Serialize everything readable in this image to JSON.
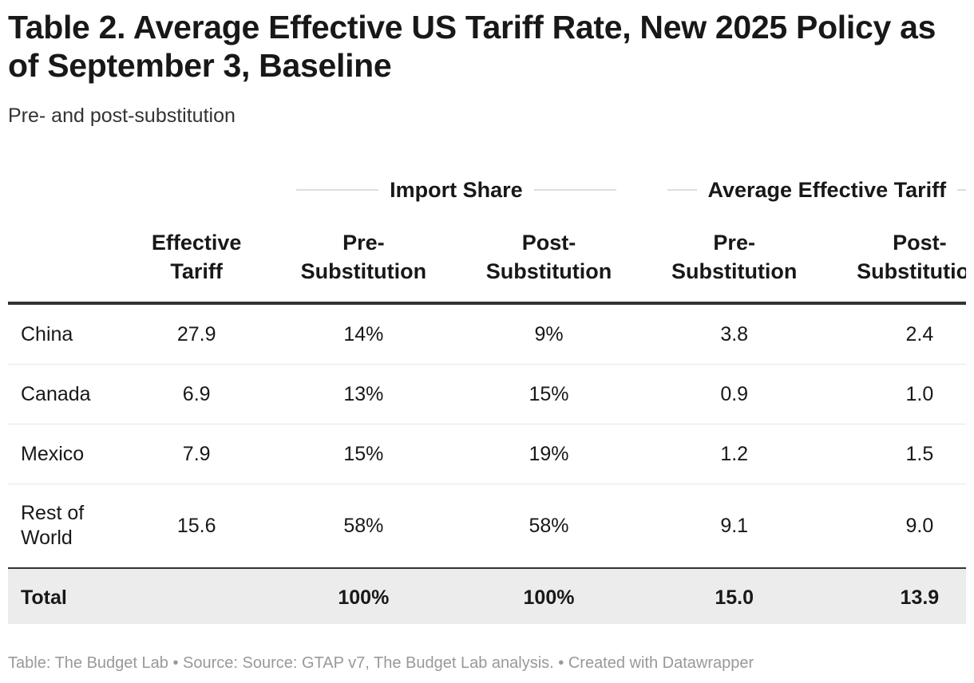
{
  "title": "Table 2. Average Effective US Tariff Rate, New 2025 Policy as of September 3, Baseline",
  "subtitle": "Pre- and post-substitution",
  "footer": "Table: The Budget Lab • Source: Source: GTAP v7, The Budget Lab analysis. • Created with Datawrapper",
  "chart_data": {
    "type": "table",
    "column_groups": [
      {
        "label": "Import Share",
        "columns": [
          "Pre-Substitution",
          "Post-Substitution"
        ]
      },
      {
        "label": "Average Effective Tariff",
        "columns": [
          "Pre-Substitution",
          "Post-Substitution"
        ]
      }
    ],
    "columns": [
      "",
      "Effective Tariff",
      "Pre-Substitution",
      "Post-Substitution",
      "Pre-Substitution",
      "Post-Substitution"
    ],
    "header_lines": [
      [
        "",
        ""
      ],
      [
        "Effective",
        "Tariff"
      ],
      [
        "Pre-",
        "Substitution"
      ],
      [
        "Post-",
        "Substitution"
      ],
      [
        "Pre-",
        "Substitution"
      ],
      [
        "Post-",
        "Substitution"
      ]
    ],
    "rows": [
      [
        "China",
        "27.9",
        "14%",
        "9%",
        "3.8",
        "2.4"
      ],
      [
        "Canada",
        "6.9",
        "13%",
        "15%",
        "0.9",
        "1.0"
      ],
      [
        "Mexico",
        "7.9",
        "15%",
        "19%",
        "1.2",
        "1.5"
      ],
      [
        "Rest of World",
        "15.6",
        "58%",
        "58%",
        "9.1",
        "9.0"
      ]
    ],
    "total": [
      "Total",
      "",
      "100%",
      "100%",
      "15.0",
      "13.9"
    ]
  }
}
